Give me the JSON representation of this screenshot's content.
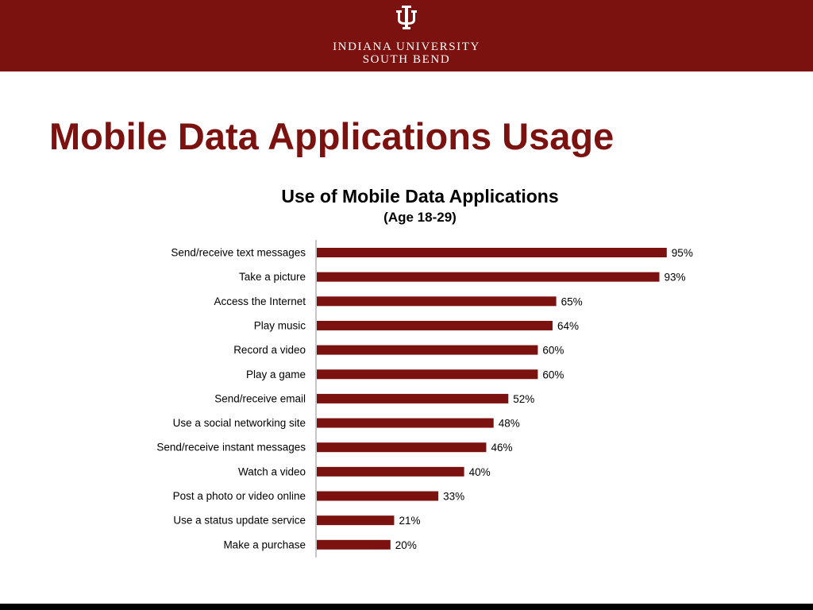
{
  "header": {
    "university_line1": "INDIANA UNIVERSITY",
    "university_line2": "SOUTH BEND",
    "logo_icon": "iu-trident-icon",
    "band_color": "#7b120f"
  },
  "slide": {
    "title": "Mobile Data Applications Usage",
    "title_color": "#7b120f"
  },
  "chart_data": {
    "type": "bar",
    "orientation": "horizontal",
    "title": "Use of Mobile Data Applications",
    "subtitle": "(Age 18-29)",
    "categories": [
      "Send/receive text messages",
      "Take a picture",
      "Access the Internet",
      "Play music",
      "Record a video",
      "Play a game",
      "Send/receive email",
      "Use a social networking site",
      "Send/receive instant messages",
      "Watch a video",
      "Post a photo or video online",
      "Use a status update service",
      "Make a purchase"
    ],
    "values": [
      95,
      93,
      65,
      64,
      60,
      60,
      52,
      48,
      46,
      40,
      33,
      21,
      20
    ],
    "value_labels": [
      "95%",
      "93%",
      "65%",
      "64%",
      "60%",
      "60%",
      "52%",
      "48%",
      "46%",
      "40%",
      "33%",
      "21%",
      "20%"
    ],
    "xlim": [
      0,
      100
    ],
    "bar_color": "#7b120f",
    "grid": false,
    "legend": "none"
  }
}
